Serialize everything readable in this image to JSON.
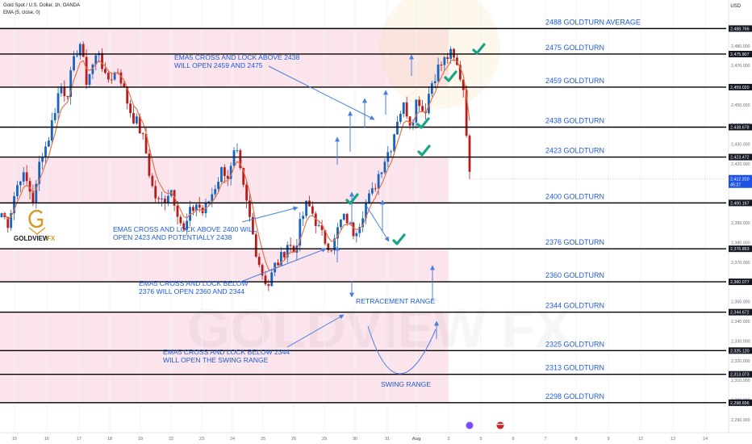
{
  "header": {
    "symbol": "Gold Spot / U.S. Dollar, 1h, OANDA",
    "indicator": "EMA (5, close, 0)",
    "currency": "USD"
  },
  "logo": {
    "text": "GOLDVIEW",
    "suffix": "FX"
  },
  "watermark": "GOLDVIEW FX",
  "colors": {
    "zone_pink": "#fce4ec",
    "turn_label": "#1e5bd8",
    "candle_up": "#1565c0",
    "candle_down": "#b71c1c",
    "ema": "#e5744a",
    "check": "#17a589",
    "arrow": "#4a7fe0",
    "level_line": "#000000"
  },
  "chart_data": {
    "type": "candlestick",
    "title": "Gold Spot / U.S. Dollar, 1h, OANDA",
    "ylim": [
      2283,
      2500
    ],
    "current_price": "2,412.310",
    "countdown": "45:27",
    "x_ticks": [
      "15",
      "16",
      "17",
      "18",
      "19",
      "22",
      "23",
      "24",
      "25",
      "26",
      "29",
      "30",
      "31",
      "Aug",
      "2",
      "5",
      "6",
      "7",
      "8",
      "9",
      "12",
      "13",
      "14"
    ],
    "y_ticks": [
      "2,480.000",
      "2,470.000",
      "2,450.000",
      "2,440.000",
      "2,430.000",
      "2,420.000",
      "2,390.000",
      "2,380.000",
      "2,370.000",
      "2,350.000",
      "2,340.000",
      "2,330.000",
      "2,320.000",
      "2,310.000",
      "2,300.000",
      "2,290.000"
    ],
    "price_tags": [
      "2,488.766",
      "2,475.807",
      "2,459.020",
      "2,438.678",
      "2,423.472",
      "2,400.167",
      "2,376.863",
      "2,360.077",
      "2,344.672",
      "2,325.120",
      "2,313.073",
      "2,298.656"
    ],
    "levels": [
      {
        "price": 2488.766,
        "label": "2488 GOLDTURN AVERAGE"
      },
      {
        "price": 2475.807,
        "label": "2475 GOLDTURN"
      },
      {
        "price": 2459.02,
        "label": "2459 GOLDTURN"
      },
      {
        "price": 2438.678,
        "label": "2438 GOLDTURN"
      },
      {
        "price": 2423.472,
        "label": "2423 GOLDTURN"
      },
      {
        "price": 2400.167,
        "label": "2400 GOLDTURN"
      },
      {
        "price": 2376.863,
        "label": "2376 GOLDTURN"
      },
      {
        "price": 2360.077,
        "label": "2360 GOLDTURN"
      },
      {
        "price": 2344.672,
        "label": "2344 GOLDTURN"
      },
      {
        "price": 2325.12,
        "label": "2325 GOLDTURN"
      },
      {
        "price": 2313.073,
        "label": "2313 GOLDTURN"
      },
      {
        "price": 2298.656,
        "label": "2298 GOLDTURN"
      }
    ],
    "zones": [
      {
        "from": 2459.02,
        "to": 2488.766
      },
      {
        "from": 2400.167,
        "to": 2423.472
      },
      {
        "from": 2360.077,
        "to": 2376.863
      },
      {
        "from": 2298.656,
        "to": 2344.672
      }
    ],
    "price_path": [
      2395,
      2390,
      2405,
      2415,
      2410,
      2400,
      2425,
      2430,
      2445,
      2460,
      2455,
      2470,
      2483,
      2462,
      2470,
      2478,
      2462,
      2465,
      2468,
      2455,
      2445,
      2440,
      2430,
      2410,
      2400,
      2402,
      2408,
      2397,
      2385,
      2395,
      2400,
      2395,
      2402,
      2410,
      2418,
      2413,
      2428,
      2410,
      2395,
      2378,
      2365,
      2358,
      2368,
      2372,
      2380,
      2375,
      2390,
      2400,
      2394,
      2385,
      2380,
      2378,
      2390,
      2393,
      2385,
      2390,
      2400,
      2405,
      2415,
      2423,
      2430,
      2445,
      2450,
      2440,
      2455,
      2445,
      2460,
      2468,
      2472,
      2476,
      2470,
      2460,
      2416
    ],
    "annotations": [
      {
        "text": [
          "EMA5 CROSS AND LOCK ABOVE 2438",
          "WILL OPEN 2459 AND 2475"
        ]
      },
      {
        "text": [
          "EMA5 CROSS AND LOCK ABOVE 2400 WILL",
          "OPEN 2423 AND POTENTIALLY  2438"
        ]
      },
      {
        "text": [
          "EMA5 CROSS AND LOCK BELOW",
          "2376 WILL OPEN 2360 AND 2344"
        ]
      },
      {
        "text": [
          "EMA5 CROSS AND LOCK BELOW 2344",
          "WILL OPEN THE SWING RANGE"
        ]
      },
      {
        "text": [
          "RETRACEMENT RANGE"
        ]
      },
      {
        "text": [
          "SWING RANGE"
        ]
      }
    ]
  }
}
